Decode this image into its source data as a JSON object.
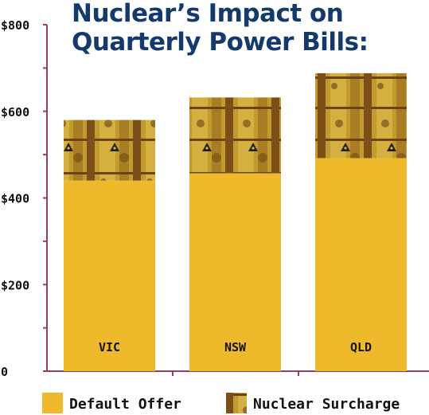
{
  "chart_data": {
    "type": "bar",
    "stacked": true,
    "title_lines": [
      "Nuclear’s Impact on",
      "Quarterly Power Bills:"
    ],
    "categories": [
      "VIC",
      "NSW",
      "QLD"
    ],
    "series": [
      {
        "name": "Default Offer",
        "values": [
          440,
          457,
          492
        ],
        "color": "#eeba2b"
      },
      {
        "name": "Nuclear Surcharge",
        "values": [
          140,
          175,
          196
        ],
        "color": "#8a5a1c"
      }
    ],
    "ylim": [
      0,
      800
    ],
    "yticks": [
      0,
      200,
      400,
      600,
      800
    ],
    "ytick_labels": [
      "0",
      "$200",
      "$400",
      "$600",
      "$800"
    ],
    "grid": false,
    "legend_position": "bottom",
    "axis_color": "#9a3d66"
  }
}
